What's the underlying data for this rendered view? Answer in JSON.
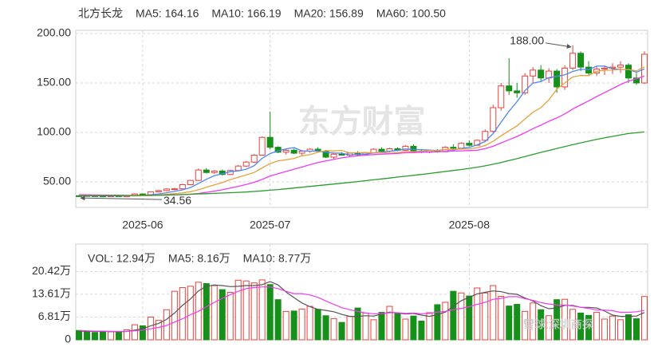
{
  "chart_data": [
    {
      "type": "candlestick",
      "title": "北方长龙",
      "watermark": "东方财富",
      "categories": [
        null,
        null,
        null,
        null,
        null,
        null,
        null,
        null,
        "2025-06",
        null,
        null,
        null,
        null,
        null,
        null,
        null,
        null,
        null,
        null,
        null,
        null,
        null,
        null,
        null,
        "2025-07",
        null,
        null,
        null,
        null,
        null,
        null,
        null,
        null,
        null,
        null,
        null,
        null,
        null,
        null,
        null,
        null,
        null,
        null,
        null,
        null,
        null,
        null,
        null,
        null,
        "2025-08",
        null,
        null,
        null,
        null,
        null,
        null,
        null,
        null,
        null,
        null,
        null,
        null,
        null,
        null,
        null,
        null,
        null,
        null,
        null,
        null,
        null,
        null
      ],
      "open": [
        36.0,
        36.2,
        36.0,
        35.8,
        35.6,
        35.9,
        35.3,
        35.8,
        37.8,
        37.0,
        40.0,
        41.2,
        42.8,
        43.0,
        47.2,
        51.5,
        62.0,
        59.5,
        61.0,
        57.5,
        61.5,
        66.0,
        70.0,
        77.0,
        95.0,
        85,
        80,
        82,
        79,
        81,
        83,
        81,
        75,
        78,
        77,
        79,
        77.5,
        79.5,
        83,
        81,
        83.5,
        82,
        86,
        81,
        80,
        81.5,
        80.5,
        85,
        84,
        89,
        87,
        92,
        101,
        125,
        147,
        142,
        140,
        157,
        163,
        155,
        162,
        146,
        165,
        180,
        166,
        160,
        164,
        165,
        166,
        168,
        155,
        150
      ],
      "high": [
        36.5,
        36.8,
        36.6,
        36.4,
        36.3,
        36.2,
        36.0,
        38.5,
        38.4,
        40.5,
        42.0,
        43.5,
        44.0,
        48.0,
        52.0,
        63.5,
        64.0,
        62.0,
        62.5,
        62.0,
        67.0,
        71.0,
        78.0,
        96.0,
        121.0,
        86,
        83,
        83.5,
        82,
        84,
        85,
        82,
        78.5,
        80,
        79.5,
        81,
        80,
        84,
        85,
        84.5,
        85,
        87,
        88,
        82.5,
        82,
        83,
        86,
        88,
        90,
        92,
        93,
        103,
        128,
        150,
        175,
        150,
        160,
        166,
        168,
        165,
        164,
        168,
        188,
        182,
        172,
        167,
        168,
        170,
        172,
        170,
        160,
        182
      ],
      "low": [
        34.56,
        35.6,
        35.5,
        35.2,
        35.0,
        34.9,
        34.9,
        35.5,
        36.6,
        36.8,
        39.2,
        40.5,
        41.5,
        42.6,
        46.5,
        51.0,
        58.5,
        58.0,
        56.5,
        57.0,
        60.8,
        65.0,
        69.0,
        76.5,
        83.0,
        79,
        77.5,
        78,
        77,
        79.5,
        80,
        74,
        73.5,
        76.5,
        75.5,
        76,
        76.5,
        78.5,
        80,
        80,
        81,
        81.5,
        80,
        79,
        79,
        79.5,
        80,
        83,
        83.5,
        86,
        86.5,
        91,
        100,
        122,
        138,
        135,
        138,
        150,
        152,
        150,
        140,
        143,
        163,
        162,
        158,
        157,
        158,
        159,
        160,
        150,
        148,
        149
      ],
      "close": [
        35.8,
        36.0,
        35.8,
        35.6,
        35.9,
        35.3,
        35.8,
        37.8,
        37.0,
        40.0,
        41.2,
        42.8,
        43.0,
        47.2,
        51.5,
        62.0,
        59.5,
        61.0,
        57.5,
        61.5,
        66.0,
        70.0,
        77.0,
        95.0,
        85.0,
        80,
        82,
        79,
        81,
        83,
        81,
        75,
        78,
        77,
        79,
        77.5,
        79.5,
        83,
        81,
        83.5,
        82,
        86,
        81,
        80,
        81.5,
        80.5,
        85,
        84,
        89,
        87,
        92,
        101,
        125,
        147,
        142,
        140,
        157,
        163,
        155,
        162,
        146,
        165,
        180,
        166,
        160,
        164,
        165,
        166,
        168,
        155,
        150,
        179
      ],
      "up_color": "#e8413b",
      "down_color": "#16901a",
      "series": [
        {
          "name": "MA5: 164.16",
          "color": "#4f86f7",
          "values": [
            36.3,
            36.2,
            36.1,
            36.0,
            35.9,
            35.8,
            35.7,
            36.1,
            36.3,
            36.9,
            37.8,
            39.0,
            40.4,
            41.9,
            44.3,
            48.3,
            52.7,
            56.2,
            58.3,
            60.3,
            61.1,
            62.8,
            66.4,
            73.9,
            78.6,
            81.4,
            83.4,
            84.6,
            81.4,
            81.0,
            81.2,
            79.8,
            79.2,
            79.0,
            77.2,
            77.9,
            78.2,
            79.2,
            80.1,
            80.9,
            81.8,
            83.2,
            82.7,
            82.5,
            82.1,
            81.8,
            82.6,
            82.2,
            83.9,
            84.9,
            87.4,
            90.8,
            98.8,
            110.4,
            121.4,
            131.0,
            142.2,
            149.8,
            151.4,
            155.4,
            156.6,
            158.2,
            161.6,
            163.8,
            163.4,
            167.0,
            167.0,
            164.2,
            163.6,
            163.6,
            160.8,
            164.16
          ]
        },
        {
          "name": "MA10: 166.19",
          "color": "#e6a23c",
          "values": [
            36.5,
            36.4,
            36.3,
            36.2,
            36.1,
            36.0,
            35.9,
            35.9,
            36.0,
            36.2,
            36.8,
            37.4,
            38.2,
            38.9,
            40.1,
            42.0,
            44.5,
            47.0,
            49.3,
            52.3,
            54.7,
            57.0,
            59.5,
            64.1,
            68.5,
            71.3,
            72.3,
            73.7,
            76.4,
            77.5,
            79.9,
            81.6,
            81.3,
            81.8,
            79.3,
            79.5,
            79.7,
            79.1,
            79.6,
            79.0,
            79.5,
            80.7,
            80.5,
            80.8,
            81.5,
            81.8,
            82.9,
            82.7,
            83.2,
            83.4,
            84.6,
            86.7,
            91.0,
            96.6,
            101.7,
            106.6,
            113.5,
            120.4,
            125.1,
            132.9,
            143.8,
            150.0,
            156.0,
            157.6,
            157.4,
            161.8,
            162.8,
            163.0,
            163.6,
            163.6,
            162.2,
            166.19
          ]
        },
        {
          "name": "MA20: 156.89",
          "color": "#f03cf0",
          "values": [
            37.0,
            36.9,
            36.8,
            36.7,
            36.6,
            36.5,
            36.4,
            36.3,
            36.3,
            36.3,
            36.4,
            36.6,
            36.8,
            37.1,
            37.6,
            38.3,
            39.4,
            40.6,
            42.0,
            43.7,
            45.5,
            47.4,
            49.6,
            52.5,
            55.8,
            58.2,
            60.5,
            62.8,
            65.0,
            67.3,
            69.5,
            71.2,
            72.8,
            74.3,
            75.4,
            76.4,
            77.0,
            77.6,
            78.1,
            78.3,
            78.8,
            79.4,
            79.6,
            80.0,
            80.2,
            80.5,
            80.8,
            81.2,
            81.4,
            81.6,
            82.0,
            83.6,
            86.0,
            89.4,
            92.6,
            95.9,
            99.7,
            103.8,
            107.3,
            111.3,
            114.6,
            118.7,
            123.6,
            127.8,
            131.9,
            136.3,
            140.2,
            144.3,
            148.4,
            151.8,
            154.2,
            156.89
          ]
        },
        {
          "name": "MA60: 100.50",
          "color": "#2a9d2a",
          "values": [
            36.0,
            36.0,
            36.0,
            36.0,
            36.1,
            36.1,
            36.2,
            36.3,
            36.4,
            36.5,
            36.6,
            36.8,
            37.0,
            37.2,
            37.5,
            37.8,
            38.1,
            38.4,
            38.7,
            39.0,
            39.4,
            39.8,
            40.3,
            40.9,
            41.6,
            42.3,
            43.0,
            43.8,
            44.6,
            45.4,
            46.2,
            47.0,
            47.8,
            48.6,
            49.4,
            50.3,
            51.2,
            52.1,
            53.0,
            53.9,
            54.8,
            55.7,
            56.6,
            57.5,
            58.5,
            59.5,
            60.5,
            61.5,
            62.5,
            63.6,
            64.8,
            66.2,
            67.8,
            69.6,
            71.5,
            73.5,
            75.6,
            77.7,
            79.8,
            81.8,
            83.8,
            85.7,
            87.6,
            89.4,
            91.2,
            92.9,
            94.5,
            96.0,
            97.5,
            98.9,
            99.7,
            100.5
          ]
        }
      ],
      "annotations": [
        {
          "x": 62,
          "y": 188,
          "label": "188.00",
          "side": "left"
        },
        {
          "x": 0,
          "y": 34.56,
          "label": "34.56",
          "side": "right"
        }
      ],
      "ylim": [
        24.2,
        203.2
      ],
      "yticks": [
        {
          "value": 200,
          "label": "200.00"
        },
        {
          "value": 150,
          "label": "150.00"
        },
        {
          "value": 100,
          "label": "100.00"
        },
        {
          "value": 50,
          "label": "50.00"
        }
      ],
      "grid": true
    },
    {
      "type": "bar",
      "watermark": "雪球:深圳商探",
      "series": [
        {
          "name": "VOL: 12.94万",
          "color": "#e040d8",
          "values": [
            2.8,
            2.6,
            2.2,
            2.5,
            2.4,
            2.3,
            3.0,
            4.5,
            4.2,
            6.8,
            5.8,
            9.0,
            14.5,
            15.6,
            16.0,
            17.2,
            16.8,
            16.2,
            15.0,
            14.2,
            17.8,
            17.6,
            17.0,
            17.9,
            16.5,
            12.0,
            8.5,
            8.6,
            9.2,
            10.0,
            9.1,
            7.2,
            6.3,
            5.2,
            7.0,
            9.5,
            8.0,
            6.0,
            8.2,
            10.0,
            8.0,
            6.2,
            7.1,
            5.6,
            8.1,
            10.5,
            11.2,
            14.5,
            14.0,
            13.1,
            15.5,
            14.0,
            16.2,
            13.0,
            10.1,
            10.6,
            8.5,
            11.0,
            9.0,
            7.2,
            12.0,
            12.1,
            9.1,
            8.0,
            7.3,
            8.2,
            6.2,
            7.1,
            6.0,
            7.5,
            6.3,
            12.94
          ]
        },
        {
          "name": "MA5: 8.16万",
          "color": "#555555",
          "type": "line",
          "values": [
            2.6,
            2.6,
            2.5,
            2.5,
            2.5,
            2.4,
            2.5,
            2.9,
            3.3,
            4.2,
            4.9,
            6.1,
            8.0,
            10.3,
            12.2,
            14.6,
            16.0,
            16.4,
            16.2,
            15.9,
            16.0,
            16.2,
            16.2,
            16.5,
            17.4,
            16.4,
            14.3,
            12.6,
            11.0,
            9.9,
            9.1,
            8.8,
            8.4,
            7.6,
            7.0,
            7.0,
            7.2,
            7.1,
            7.7,
            8.3,
            8.0,
            7.7,
            7.9,
            7.4,
            7.0,
            7.5,
            8.3,
            10.0,
            11.7,
            12.7,
            13.7,
            14.2,
            14.6,
            14.4,
            13.8,
            13.6,
            12.5,
            11.6,
            10.2,
            9.3,
            9.5,
            10.3,
            10.3,
            9.7,
            9.7,
            9.5,
            8.6,
            7.4,
            7.0,
            7.0,
            7.1,
            8.16
          ]
        },
        {
          "name": "MA10: 8.77万",
          "color": "#f03cf0",
          "type": "line",
          "values": [
            2.8,
            2.7,
            2.6,
            2.6,
            2.5,
            2.5,
            2.5,
            2.7,
            2.9,
            3.3,
            3.7,
            4.3,
            5.3,
            6.3,
            7.5,
            8.5,
            9.9,
            11.2,
            12.4,
            13.5,
            14.5,
            15.3,
            15.6,
            15.8,
            15.8,
            15.3,
            14.5,
            13.8,
            13.8,
            13.4,
            12.7,
            11.6,
            10.6,
            9.6,
            9.0,
            8.5,
            8.0,
            7.8,
            7.8,
            8.1,
            8.1,
            7.9,
            8.0,
            7.8,
            7.9,
            8.3,
            8.5,
            9.0,
            9.4,
            9.9,
            10.6,
            11.2,
            12.1,
            12.4,
            12.9,
            12.9,
            12.3,
            11.8,
            11.1,
            10.7,
            10.4,
            10.4,
            10.1,
            9.7,
            9.4,
            8.9,
            8.9,
            8.7,
            8.2,
            8.2,
            8.4,
            8.77
          ]
        }
      ],
      "ylim": [
        0,
        28.6
      ],
      "yticks": [
        {
          "value": 20.42,
          "label": "20.42万"
        },
        {
          "value": 13.61,
          "label": "13.61万"
        },
        {
          "value": 6.81,
          "label": "6.81万"
        },
        0
      ],
      "grid": true
    }
  ]
}
